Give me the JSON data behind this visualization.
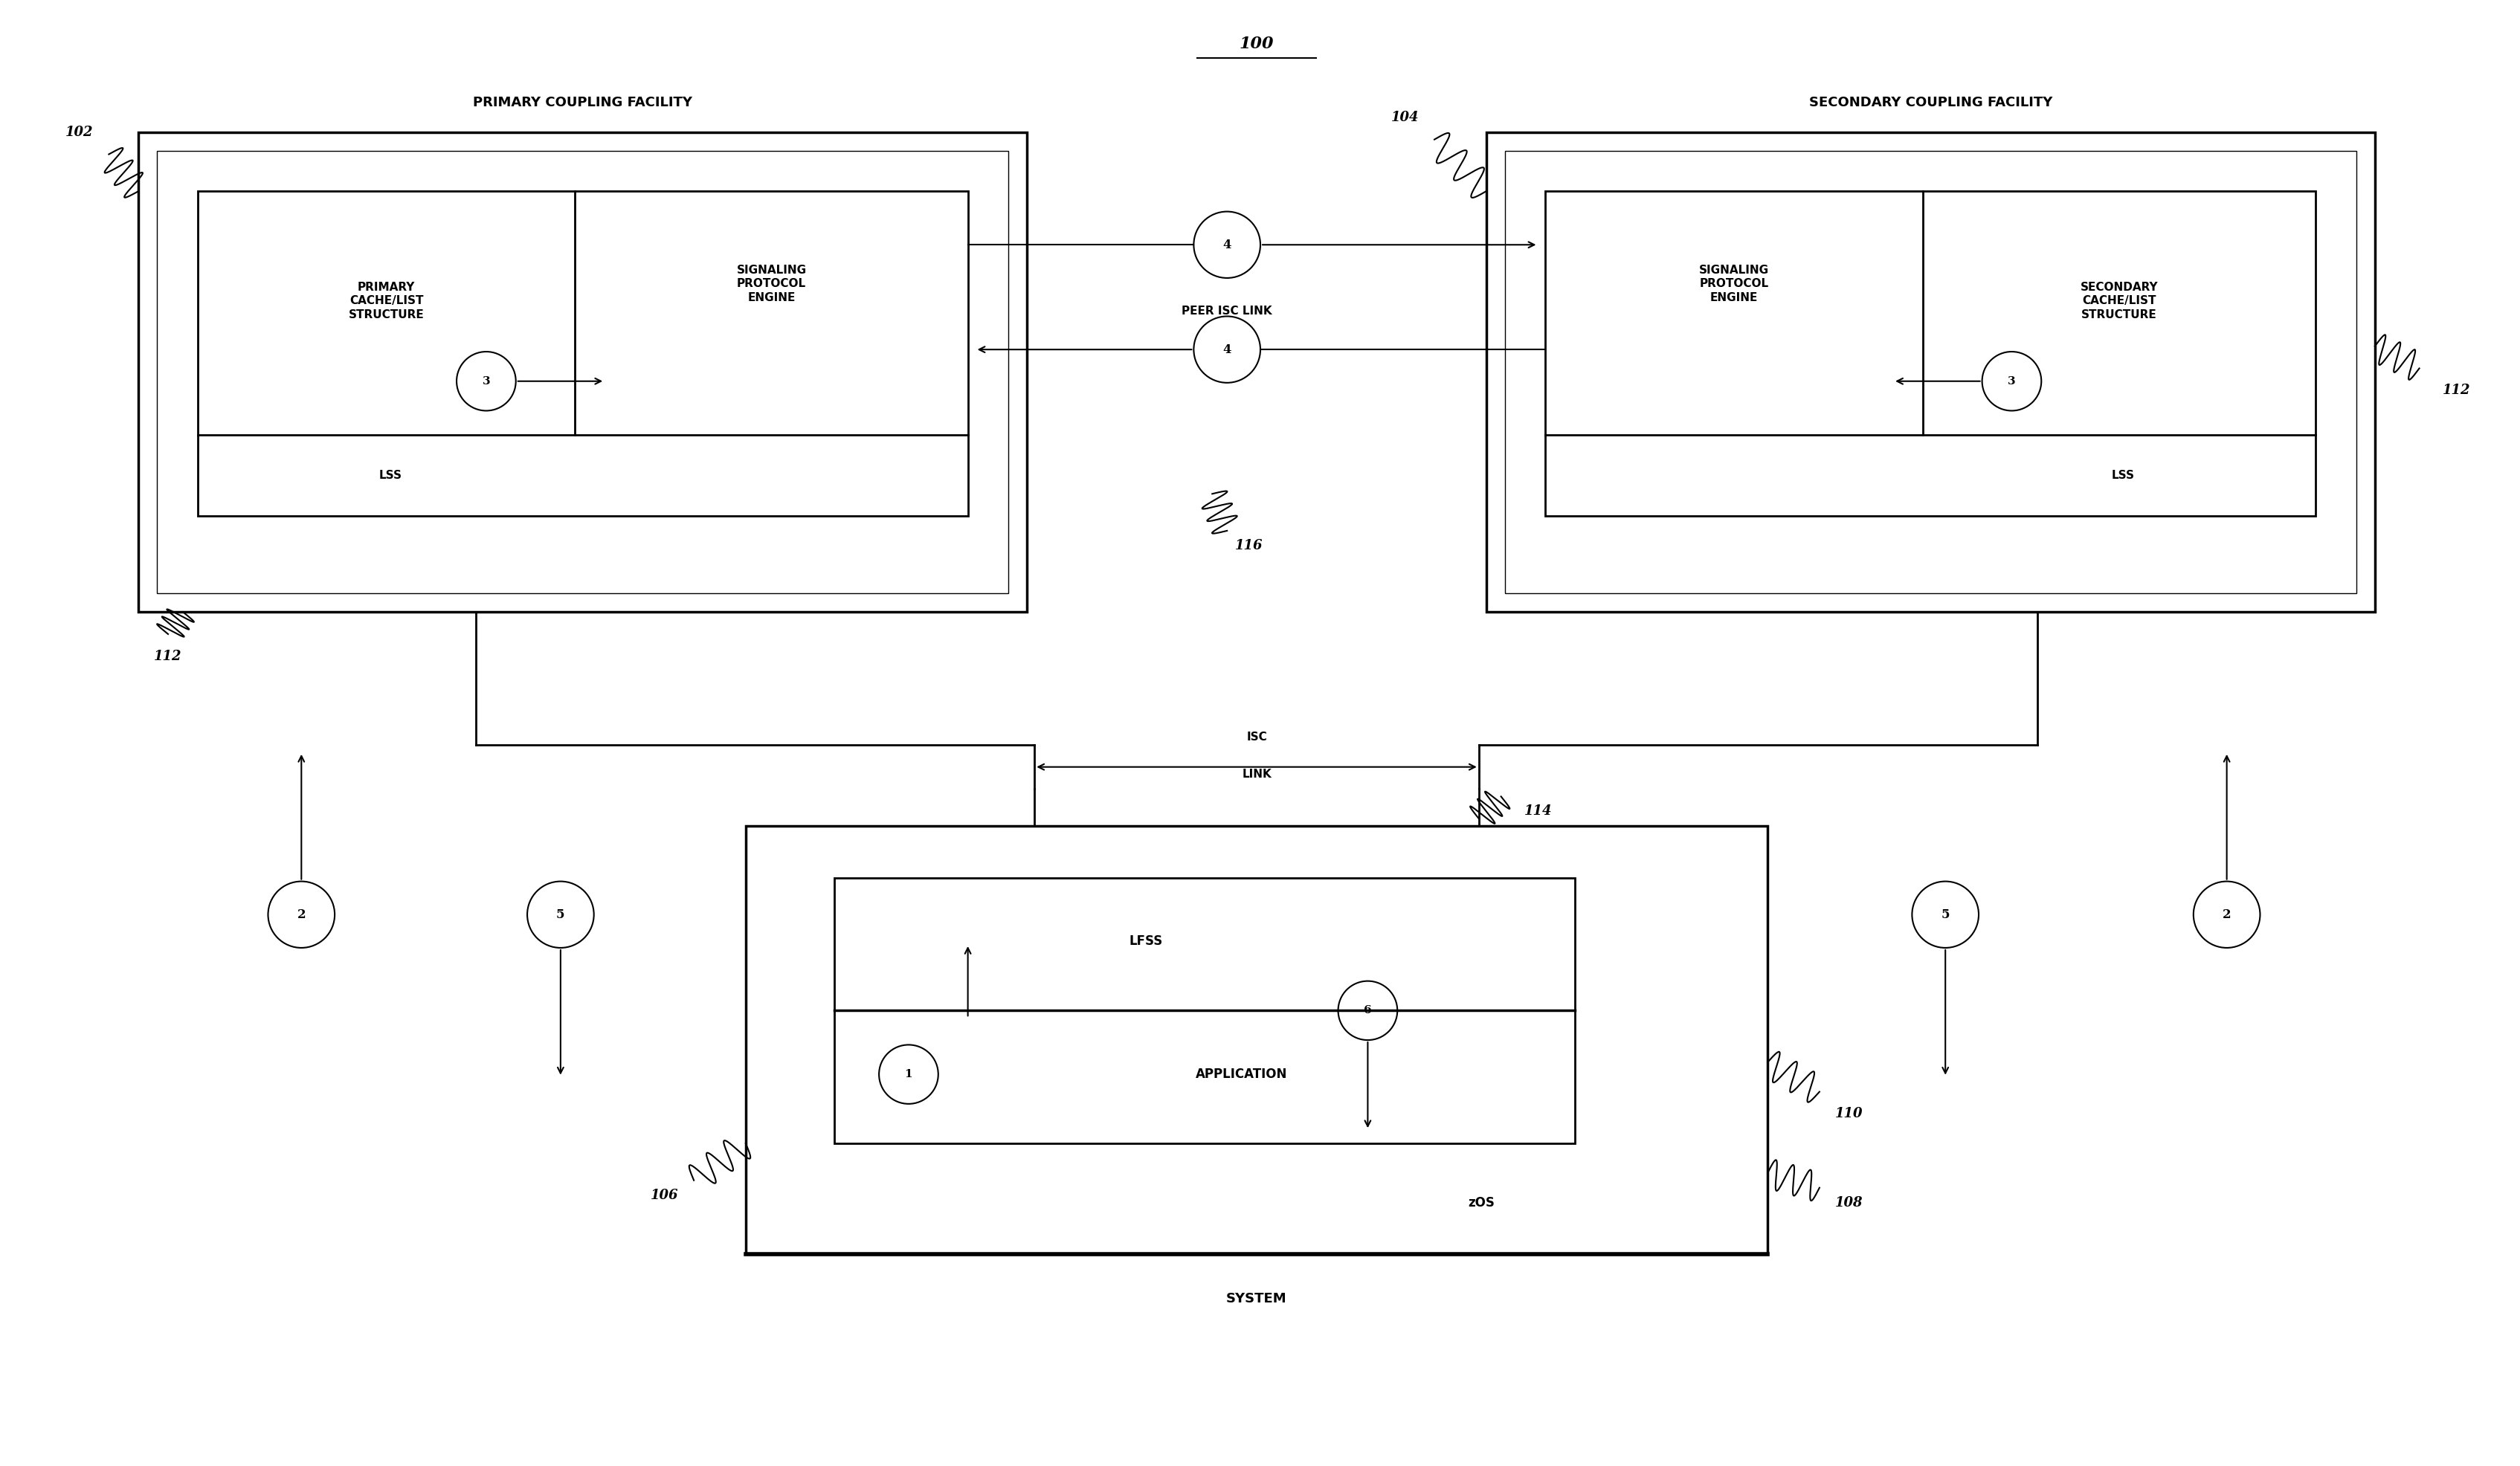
{
  "fig_width": 33.89,
  "fig_height": 19.72,
  "bg_color": "#ffffff",
  "title_ref": "100",
  "primary_facility_label": "PRIMARY COUPLING FACILITY",
  "secondary_facility_label": "SECONDARY COUPLING FACILITY",
  "system_label": "SYSTEM",
  "ref_102": "102",
  "ref_104": "104",
  "ref_106": "106",
  "ref_108": "108",
  "ref_110": "110",
  "ref_112": "112",
  "ref_114": "114",
  "ref_116": "116",
  "primary_cache_label": "PRIMARY\nCACHE/LIST\nSTRUCTURE",
  "signaling_primary_label": "SIGNALING\nPROTOCOL\nENGINE",
  "signaling_secondary_label": "SIGNALING\nPROTOCOL\nENGINE",
  "secondary_cache_label": "SECONDARY\nCACHE/LIST\nSTRUCTURE",
  "lss_label": "LSS",
  "lfss_label": "LFSS",
  "application_label": "APPLICATION",
  "zos_label": "zOS",
  "peer_isc_label": "PEER ISC LINK",
  "isc_label": "ISC\nLINK"
}
